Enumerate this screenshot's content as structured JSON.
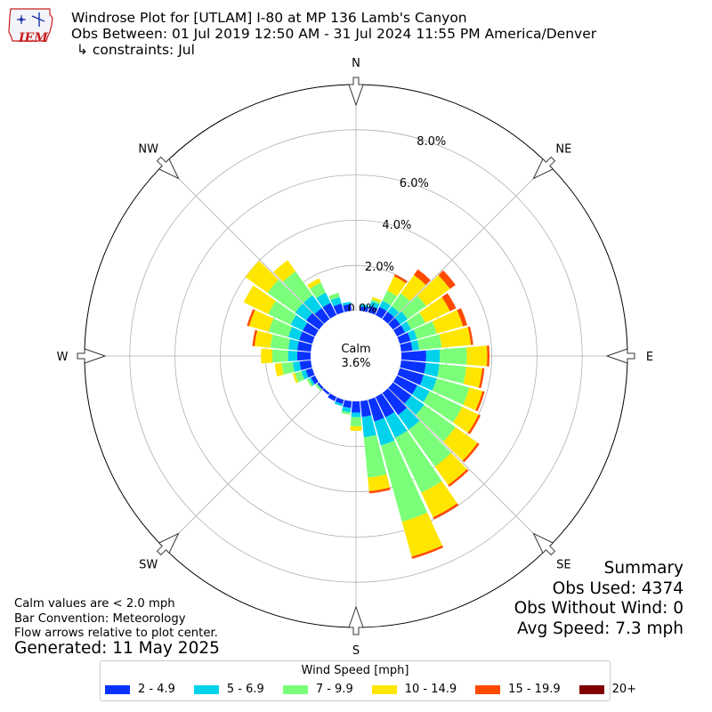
{
  "title": {
    "line1": "Windrose Plot for [UTLAM] I-80 at MP 136 Lamb's Canyon",
    "line2": "Obs Between: 01 Jul 2019 12:50 AM - 31 Jul 2024 11:55 PM America/Denver",
    "line3": "↳ constraints: Jul"
  },
  "logo_text": "IEM",
  "calm": {
    "label": "Calm",
    "value": "3.6%"
  },
  "summary": {
    "heading": "Summary",
    "obs_used": "Obs Used: 4374",
    "obs_without_wind": "Obs Without Wind: 0",
    "avg_speed": "Avg Speed: 7.3 mph"
  },
  "notes": [
    "Calm values are < 2.0 mph",
    "Bar Convention: Meteorology",
    "Flow arrows relative to plot center."
  ],
  "generated": "Generated: 11 May 2025",
  "legend": {
    "title": "Wind Speed [mph]",
    "items": [
      {
        "label": "2 - 4.9",
        "color": "#0a32ff"
      },
      {
        "label": "5 - 6.9",
        "color": "#00d2ec"
      },
      {
        "label": "7 - 9.9",
        "color": "#7bff7a"
      },
      {
        "label": "10 - 14.9",
        "color": "#ffe600"
      },
      {
        "label": "15 - 19.9",
        "color": "#ff4a00"
      },
      {
        "label": "20+",
        "color": "#800000"
      }
    ]
  },
  "chart_data": {
    "type": "windrose",
    "directions": [
      "N",
      "NE",
      "E",
      "SE",
      "S",
      "SW",
      "W",
      "NW"
    ],
    "rlabels": [
      "0.0%",
      "2.0%",
      "4.0%",
      "6.0%",
      "8.0%"
    ],
    "rticks": [
      0,
      2,
      4,
      6,
      8
    ],
    "rmax": 10,
    "calm_pct": 3.6,
    "sector_width_deg": 10,
    "series": [
      {
        "name": "2 - 4.9",
        "color": "#0a32ff"
      },
      {
        "name": "5 - 6.9",
        "color": "#00d2ec"
      },
      {
        "name": "7 - 9.9",
        "color": "#7bff7a"
      },
      {
        "name": "10 - 14.9",
        "color": "#ffe600"
      },
      {
        "name": "15 - 19.9",
        "color": "#ff4a00"
      },
      {
        "name": "20+",
        "color": "#800000"
      }
    ],
    "sectors": [
      {
        "dir": 0,
        "values": [
          0.0,
          0.0,
          0.0,
          0.0,
          0.0,
          0.0
        ]
      },
      {
        "dir": 10,
        "values": [
          0.2,
          0.1,
          0.0,
          0.0,
          0.0,
          0.0
        ]
      },
      {
        "dir": 20,
        "values": [
          0.3,
          0.2,
          0.1,
          0.1,
          0.0,
          0.0
        ]
      },
      {
        "dir": 30,
        "values": [
          0.4,
          0.3,
          0.5,
          0.7,
          0.1,
          0.0
        ]
      },
      {
        "dir": 40,
        "values": [
          0.4,
          0.3,
          0.7,
          1.0,
          0.3,
          0.0
        ]
      },
      {
        "dir": 50,
        "values": [
          0.4,
          0.4,
          1.0,
          1.3,
          0.3,
          0.0
        ]
      },
      {
        "dir": 60,
        "values": [
          0.4,
          0.3,
          0.7,
          1.2,
          0.3,
          0.0
        ]
      },
      {
        "dir": 70,
        "values": [
          0.5,
          0.3,
          0.9,
          1.2,
          0.2,
          0.0
        ]
      },
      {
        "dir": 80,
        "values": [
          0.5,
          0.3,
          1.0,
          1.3,
          0.1,
          0.0
        ]
      },
      {
        "dir": 90,
        "values": [
          1.1,
          0.6,
          1.2,
          0.9,
          0.1,
          0.0
        ]
      },
      {
        "dir": 100,
        "values": [
          1.1,
          0.6,
          1.2,
          0.7,
          0.1,
          0.0
        ]
      },
      {
        "dir": 110,
        "values": [
          1.1,
          0.6,
          1.5,
          0.6,
          0.1,
          0.0
        ]
      },
      {
        "dir": 120,
        "values": [
          1.0,
          0.6,
          1.6,
          0.8,
          0.1,
          0.0
        ]
      },
      {
        "dir": 130,
        "values": [
          1.0,
          0.7,
          1.7,
          1.2,
          0.1,
          0.0
        ]
      },
      {
        "dir": 140,
        "values": [
          1.2,
          0.8,
          2.0,
          1.0,
          0.1,
          0.0
        ]
      },
      {
        "dir": 150,
        "values": [
          1.0,
          1.0,
          2.7,
          1.2,
          0.1,
          0.0
        ]
      },
      {
        "dir": 160,
        "values": [
          1.0,
          1.1,
          3.5,
          1.6,
          0.1,
          0.0
        ]
      },
      {
        "dir": 170,
        "values": [
          0.7,
          0.9,
          1.8,
          0.6,
          0.1,
          0.0
        ]
      },
      {
        "dir": 180,
        "values": [
          0.5,
          0.2,
          0.4,
          0.2,
          0.0,
          0.0
        ]
      },
      {
        "dir": 190,
        "values": [
          0.3,
          0.2,
          0.1,
          0.0,
          0.0,
          0.0
        ]
      },
      {
        "dir": 200,
        "values": [
          0.2,
          0.1,
          0.0,
          0.0,
          0.0,
          0.0
        ]
      },
      {
        "dir": 210,
        "values": [
          0.2,
          0.0,
          0.0,
          0.0,
          0.0,
          0.0
        ]
      },
      {
        "dir": 220,
        "values": [
          0.1,
          0.0,
          0.0,
          0.0,
          0.0,
          0.0
        ]
      },
      {
        "dir": 230,
        "values": [
          0.1,
          0.0,
          0.1,
          0.0,
          0.0,
          0.0
        ]
      },
      {
        "dir": 240,
        "values": [
          0.2,
          0.1,
          0.1,
          0.0,
          0.0,
          0.0
        ]
      },
      {
        "dir": 250,
        "values": [
          0.3,
          0.2,
          0.3,
          0.1,
          0.0,
          0.0
        ]
      },
      {
        "dir": 260,
        "values": [
          0.5,
          0.3,
          0.5,
          0.3,
          0.0,
          0.0
        ]
      },
      {
        "dir": 270,
        "values": [
          0.6,
          0.4,
          0.7,
          0.5,
          0.0,
          0.0
        ]
      },
      {
        "dir": 280,
        "values": [
          0.6,
          0.4,
          0.8,
          0.7,
          0.1,
          0.0
        ]
      },
      {
        "dir": 290,
        "values": [
          0.6,
          0.5,
          0.9,
          0.9,
          0.1,
          0.0
        ]
      },
      {
        "dir": 300,
        "values": [
          0.6,
          0.6,
          1.1,
          1.2,
          0.0,
          0.0
        ]
      },
      {
        "dir": 310,
        "values": [
          0.7,
          0.6,
          1.5,
          1.2,
          0.0,
          0.0
        ]
      },
      {
        "dir": 320,
        "values": [
          0.6,
          0.7,
          1.3,
          0.6,
          0.0,
          0.0
        ]
      },
      {
        "dir": 330,
        "values": [
          0.6,
          0.5,
          0.5,
          0.2,
          0.0,
          0.0
        ]
      },
      {
        "dir": 340,
        "values": [
          0.4,
          0.3,
          0.2,
          0.0,
          0.0,
          0.0
        ]
      },
      {
        "dir": 350,
        "values": [
          0.3,
          0.1,
          0.0,
          0.0,
          0.0,
          0.0
        ]
      }
    ]
  }
}
